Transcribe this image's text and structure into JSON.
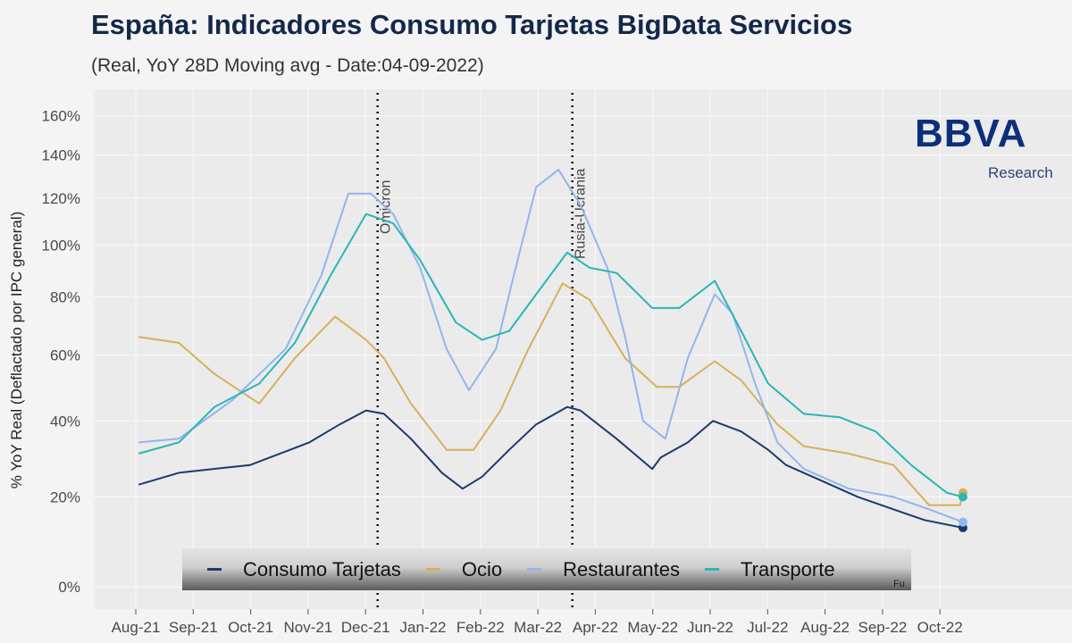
{
  "title": "España: Indicadores Consumo Tarjetas BigData Servicios",
  "subtitle": "(Real, YoY 28D Moving avg - Date:04-09-2022)",
  "logo": {
    "brand": "BBVA",
    "sub": "Research"
  },
  "source_fragment": "Fu",
  "chart_data": {
    "type": "line",
    "title": "España: Indicadores Consumo Tarjetas BigData Servicios",
    "ylabel": "% YoY Real (Deflactado por IPC general)",
    "xlabel": "",
    "y_scale": "log(1+x)",
    "ylim": [
      0,
      160
    ],
    "yticks": [
      "0%",
      "20%",
      "40%",
      "60%",
      "80%",
      "100%",
      "120%",
      "140%",
      "160%"
    ],
    "ytick_values": [
      0,
      20,
      40,
      60,
      80,
      100,
      120,
      140,
      160
    ],
    "x_unit": "months since Aug-21",
    "xticks": [
      "Aug-21",
      "Sep-21",
      "Oct-21",
      "Nov-21",
      "Dec-21",
      "Jan-22",
      "Feb-22",
      "Mar-22",
      "Apr-22",
      "May-22",
      "Jun-22",
      "Jul-22",
      "Aug-22",
      "Sep-22",
      "Oct-22"
    ],
    "grid": true,
    "legend_position": "bottom",
    "annotations": [
      {
        "label": "Omicron",
        "x": 4.21
      },
      {
        "label": "Rusia-Ucrania",
        "x": 7.6
      }
    ],
    "series": [
      {
        "name": "Consumo Tarjetas",
        "color": "#1b3a6b",
        "x": [
          0.05,
          0.75,
          1.99,
          3.02,
          3.55,
          4.01,
          4.32,
          4.79,
          5.33,
          5.69,
          6.03,
          6.5,
          6.97,
          7.51,
          7.74,
          8.37,
          8.99,
          9.14,
          9.61,
          10.05,
          10.54,
          11.01,
          11.32,
          11.94,
          12.57,
          13.19,
          13.73,
          14.4
        ],
        "y": [
          23,
          26,
          28,
          34,
          39,
          43,
          42,
          35,
          26,
          22,
          25,
          32,
          39,
          44,
          43,
          35,
          27,
          30,
          34,
          40,
          37,
          32,
          28,
          24,
          20,
          17,
          14.5,
          12.7
        ]
      },
      {
        "name": "Ocio",
        "color": "#d4b15a",
        "x": [
          0.05,
          0.75,
          1.37,
          2.15,
          2.77,
          3.47,
          4.01,
          4.32,
          4.79,
          5.41,
          5.88,
          6.35,
          6.81,
          7.43,
          7.9,
          8.52,
          9.07,
          9.46,
          10.08,
          10.54,
          11.17,
          11.63,
          12.41,
          13.19,
          13.81,
          14.35,
          14.4
        ],
        "y": [
          66,
          64,
          54,
          45,
          59,
          73,
          65,
          59,
          45,
          32,
          32,
          43,
          61,
          85,
          79,
          59,
          50,
          50,
          58,
          52,
          39,
          33,
          31,
          28,
          18,
          18,
          21
        ]
      },
      {
        "name": "Restaurantes",
        "color": "#93b4ee",
        "x": [
          0.05,
          0.75,
          1.68,
          2.61,
          3.23,
          3.7,
          4.09,
          4.48,
          4.95,
          5.41,
          5.8,
          6.27,
          6.58,
          6.97,
          7.36,
          7.74,
          8.21,
          8.52,
          8.83,
          9.22,
          9.61,
          10.08,
          10.39,
          10.78,
          11.17,
          11.63,
          12.41,
          13.19,
          13.81,
          14.4
        ],
        "y": [
          34,
          35,
          46,
          62,
          88,
          122,
          122,
          113,
          91,
          62,
          49,
          62,
          88,
          125,
          133,
          117,
          91,
          66,
          40,
          35,
          59,
          81,
          74,
          51,
          34,
          27,
          22,
          20,
          17,
          14
        ]
      },
      {
        "name": "Transporte",
        "color": "#2bb5b5",
        "x": [
          0.05,
          0.75,
          1.37,
          2.15,
          2.77,
          3.39,
          4.01,
          4.48,
          4.95,
          5.57,
          6.03,
          6.5,
          6.97,
          7.51,
          7.9,
          8.37,
          8.99,
          9.46,
          10.08,
          10.54,
          11.01,
          11.63,
          12.26,
          12.88,
          13.5,
          14.12,
          14.4
        ],
        "y": [
          31,
          34,
          44,
          51,
          64,
          88,
          113,
          109,
          94,
          71,
          65,
          68,
          81,
          97,
          91,
          89,
          76,
          76,
          86,
          68,
          51,
          42,
          41,
          37,
          28,
          21,
          20
        ]
      }
    ]
  }
}
